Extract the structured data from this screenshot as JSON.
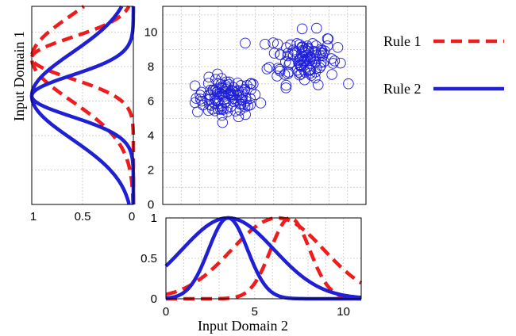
{
  "chart_data": [
    {
      "type": "scatter",
      "panel": "main",
      "xlim": [
        0,
        11
      ],
      "ylim": [
        0,
        11.5
      ],
      "xticks": [
        0,
        1,
        2,
        3,
        4,
        5,
        6,
        7,
        8,
        9,
        10,
        11
      ],
      "yticks": [
        0,
        2,
        4,
        6,
        8,
        10
      ],
      "ytick_labels": [
        "0",
        "2",
        "4",
        "6",
        "8",
        "10"
      ],
      "grid": true,
      "marker": "open-circle",
      "color": "#1f1fd6",
      "clusters": [
        {
          "center": [
            3.5,
            6.2
          ],
          "spread": [
            0.85,
            0.55
          ],
          "count": 110
        },
        {
          "center": [
            7.6,
            8.5
          ],
          "spread": [
            0.9,
            0.75
          ],
          "count": 110
        }
      ]
    },
    {
      "type": "line",
      "panel": "left-marginal",
      "variable": "Input Domain 1",
      "ylabel": "Input Domain 1",
      "xlim": [
        1,
        0
      ],
      "ylim": [
        0,
        11.5
      ],
      "xticks": [
        1,
        0.5,
        0
      ],
      "xtick_labels": [
        "1",
        "0.5",
        "0"
      ],
      "grid": true,
      "series": [
        {
          "rule": "Rule 1",
          "style": "dashed",
          "color": "#ee1c1c",
          "membership": "gaussian",
          "centers": [
            8.5,
            8.5
          ],
          "sigmas": [
            2.5,
            1.2
          ]
        },
        {
          "rule": "Rule 2",
          "style": "solid",
          "color": "#1f1fd6",
          "membership": "gaussian",
          "centers": [
            6.3,
            6.3
          ],
          "sigmas": [
            2.5,
            1.2
          ]
        }
      ]
    },
    {
      "type": "line",
      "panel": "bottom-marginal",
      "variable": "Input Domain 2",
      "xlabel": "Input Domain 2",
      "xlim": [
        0,
        11
      ],
      "ylim": [
        0,
        1
      ],
      "xticks": [
        0,
        5,
        10
      ],
      "xtick_labels": [
        "0",
        "5",
        "10"
      ],
      "yticks": [
        0,
        0.5,
        1
      ],
      "ytick_labels": [
        "0",
        "0.5",
        "1"
      ],
      "grid": true,
      "series": [
        {
          "rule": "Rule 1",
          "style": "dashed",
          "color": "#ee1c1c",
          "membership": "gaussian",
          "centers": [
            6.3,
            7.0
          ],
          "sigmas": [
            2.6,
            1.1
          ]
        },
        {
          "rule": "Rule 2",
          "style": "solid",
          "color": "#1f1fd6",
          "membership": "gaussian",
          "centers": [
            3.5,
            3.5
          ],
          "sigmas": [
            2.6,
            1.1
          ]
        }
      ]
    }
  ],
  "legend": {
    "placement": "right",
    "entries": [
      {
        "label": "Rule 1",
        "style": "dashed",
        "color": "#ee1c1c"
      },
      {
        "label": "Rule 2",
        "style": "solid",
        "color": "#1f1fd6"
      }
    ]
  }
}
